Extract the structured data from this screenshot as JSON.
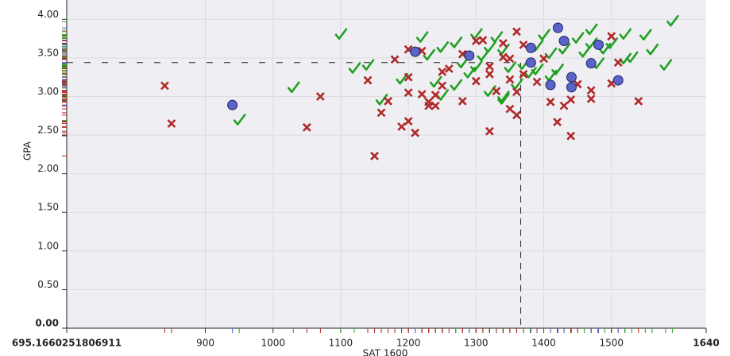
{
  "chart_data": {
    "type": "scatter",
    "x_label": "SAT 1600",
    "y_label": "GPA",
    "xlim": [
      695.1660251806911,
      1640
    ],
    "ylim": [
      0,
      4.25
    ],
    "xticks": [
      695.1660251806911,
      900,
      1000,
      1100,
      1200,
      1300,
      1400,
      1500,
      1640
    ],
    "yticks": [
      {
        "value": 0,
        "label": "0.00"
      },
      {
        "value": 0.5,
        "label": "0.50"
      },
      {
        "value": 1,
        "label": "1.00"
      },
      {
        "value": 1.5,
        "label": "1.50"
      },
      {
        "value": 2,
        "label": "2.00"
      },
      {
        "value": 2.5,
        "label": "2.50"
      },
      {
        "value": 3,
        "label": "3.00"
      },
      {
        "value": 3.5,
        "label": "3.50"
      },
      {
        "value": 4,
        "label": "4.00"
      }
    ],
    "grid": true,
    "rug": true,
    "reference_x": 1366,
    "reference_y": 3.44,
    "series": [
      {
        "marker": "check",
        "color": "#22a022",
        "x": [
          1100,
          1030,
          950,
          1120,
          1140,
          1160,
          1190,
          1220,
          1230,
          1250,
          1270,
          1290,
          1300,
          1300,
          1310,
          1320,
          1330,
          1340,
          1340,
          1350,
          1360,
          1370,
          1380,
          1390,
          1400,
          1410,
          1420,
          1430,
          1450,
          1460,
          1470,
          1480,
          1490,
          1500,
          1520,
          1530,
          1550,
          1560,
          1580,
          1590,
          1250,
          1270,
          1320,
          1340,
          1390,
          1410,
          1470,
          1520,
          1240,
          1280
        ],
        "y": [
          3.8,
          3.11,
          2.69,
          3.36,
          3.4,
          2.95,
          3.22,
          3.76,
          3.53,
          3.63,
          3.69,
          3.3,
          3.8,
          3.38,
          3.52,
          3.63,
          3.76,
          3.6,
          2.99,
          3.37,
          3.15,
          3.41,
          3.3,
          3.65,
          3.79,
          3.55,
          3.34,
          3.61,
          3.75,
          3.57,
          3.86,
          3.42,
          3.61,
          3.68,
          3.8,
          3.5,
          3.79,
          3.6,
          3.4,
          3.97,
          3.01,
          3.14,
          3.06,
          2.96,
          3.34,
          3.26,
          3.68,
          3.48,
          3.18,
          3.43
        ]
      },
      {
        "marker": "x",
        "color": "#b02828",
        "x": [
          840,
          850,
          1050,
          1070,
          1150,
          1160,
          1140,
          1170,
          1180,
          1190,
          1200,
          1200,
          1200,
          1210,
          1200,
          1220,
          1220,
          1230,
          1230,
          1240,
          1240,
          1250,
          1250,
          1260,
          1280,
          1280,
          1300,
          1310,
          1300,
          1320,
          1320,
          1330,
          1340,
          1340,
          1350,
          1350,
          1360,
          1360,
          1360,
          1370,
          1370,
          1390,
          1400,
          1410,
          1420,
          1430,
          1440,
          1440,
          1450,
          1470,
          1470,
          1500,
          1510,
          1500,
          1540,
          1350,
          1320
        ],
        "y": [
          3.14,
          2.65,
          2.6,
          3.0,
          2.23,
          2.79,
          3.21,
          2.94,
          3.48,
          2.61,
          3.25,
          3.05,
          2.68,
          2.53,
          3.61,
          3.59,
          3.03,
          2.93,
          2.88,
          2.88,
          3.02,
          3.14,
          3.32,
          3.36,
          2.94,
          3.55,
          3.72,
          3.73,
          3.2,
          2.55,
          3.29,
          3.07,
          3.69,
          3.51,
          3.22,
          2.84,
          2.76,
          3.84,
          3.06,
          3.29,
          3.67,
          3.19,
          3.49,
          2.93,
          2.67,
          2.88,
          2.96,
          2.49,
          3.16,
          3.08,
          2.97,
          3.17,
          3.44,
          3.78,
          2.94,
          3.49,
          3.39
        ]
      },
      {
        "marker": "circle",
        "color": "#5a64c8",
        "x": [
          940,
          1210,
          1290,
          1381,
          1381,
          1421,
          1430,
          1410,
          1441,
          1441,
          1470,
          1481,
          1510
        ],
        "y": [
          2.89,
          3.58,
          3.53,
          3.63,
          3.44,
          3.89,
          3.72,
          3.15,
          3.25,
          3.12,
          3.43,
          3.67,
          3.21
        ]
      }
    ]
  }
}
